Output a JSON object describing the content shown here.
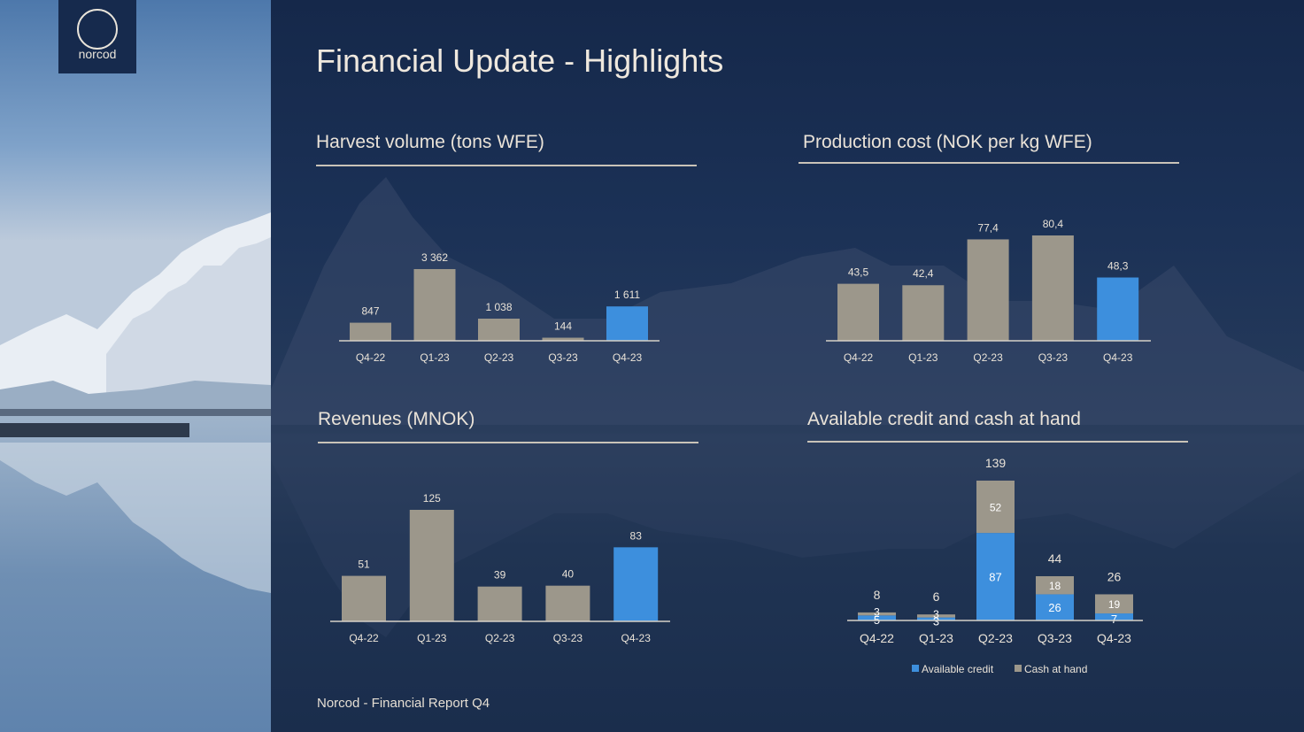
{
  "slide": {
    "title": "Financial Update - Highlights",
    "footer": "Norcod - Financial Report Q4",
    "logo_text": "norcod"
  },
  "colors": {
    "grey": "#9c978b",
    "blue": "#3d8fdd",
    "text": "#eae3d8"
  },
  "chart_data": [
    {
      "type": "bar",
      "title": "Harvest volume (tons WFE)",
      "categories": [
        "Q4-22",
        "Q1-23",
        "Q2-23",
        "Q3-23",
        "Q4-23"
      ],
      "values": [
        847,
        3362,
        1038,
        144,
        1611
      ],
      "value_labels": [
        "847",
        "3 362",
        "1 038",
        "144",
        "1 611"
      ],
      "highlight": "Q4-23",
      "ylim": [
        0,
        3362
      ],
      "grid": false
    },
    {
      "type": "bar",
      "title": "Production cost (NOK per kg WFE)",
      "categories": [
        "Q4-22",
        "Q1-23",
        "Q2-23",
        "Q3-23",
        "Q4-23"
      ],
      "values": [
        43.5,
        42.4,
        77.4,
        80.4,
        48.3
      ],
      "value_labels": [
        "43,5",
        "42,4",
        "77,4",
        "80,4",
        "48,3"
      ],
      "highlight": "Q4-23",
      "ylim": [
        0,
        80.4
      ],
      "grid": false
    },
    {
      "type": "bar",
      "title": "Revenues (MNOK)",
      "categories": [
        "Q4-22",
        "Q1-23",
        "Q2-23",
        "Q3-23",
        "Q4-23"
      ],
      "values": [
        51,
        125,
        39,
        40,
        83
      ],
      "value_labels": [
        "51",
        "125",
        "39",
        "40",
        "83"
      ],
      "highlight": "Q4-23",
      "ylim": [
        0,
        125
      ],
      "grid": false
    },
    {
      "type": "bar",
      "stacked": true,
      "title": "Available credit and cash at hand",
      "categories": [
        "Q4-22",
        "Q1-23",
        "Q2-23",
        "Q3-23",
        "Q4-23"
      ],
      "series": [
        {
          "name": "Available credit",
          "values": [
            5,
            3,
            87,
            26,
            7
          ]
        },
        {
          "name": "Cash at hand",
          "values": [
            3,
            3,
            52,
            18,
            19
          ]
        }
      ],
      "totals": [
        8,
        6,
        139,
        44,
        26
      ],
      "legend": "bottom",
      "ylim": [
        0,
        139
      ],
      "grid": false
    }
  ]
}
